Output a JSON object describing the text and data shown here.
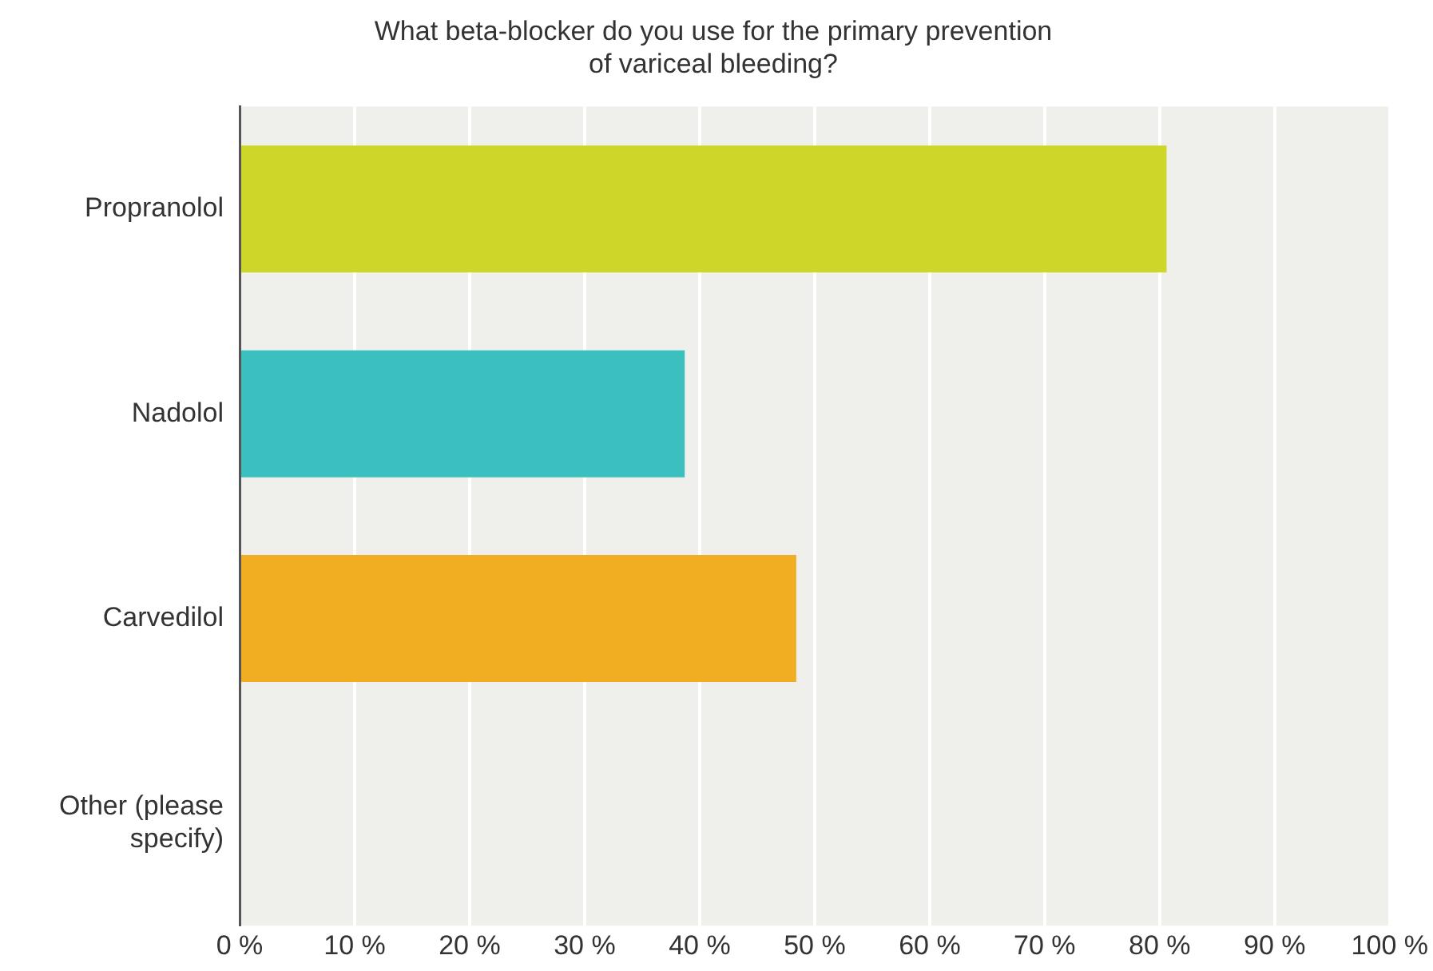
{
  "chart_data": {
    "type": "bar",
    "orientation": "horizontal",
    "title": "What beta-blocker do you use for the primary prevention of variceal bleeding?",
    "categories": [
      "Propranolol",
      "Nadolol",
      "Carvedilol",
      "Other (please specify)"
    ],
    "values": [
      80.6,
      38.7,
      48.4,
      0
    ],
    "colors": [
      "#cfd62a",
      "#3bbfbf",
      "#f2ae22",
      "#cccccc"
    ],
    "xlim": [
      0,
      100
    ],
    "xticks": [
      {
        "value": 0,
        "label": "0 %"
      },
      {
        "value": 10,
        "label": "10 %"
      },
      {
        "value": 20,
        "label": "20 %"
      },
      {
        "value": 30,
        "label": "30 %"
      },
      {
        "value": 40,
        "label": "40 %"
      },
      {
        "value": 50,
        "label": "50 %"
      },
      {
        "value": 60,
        "label": "60 %"
      },
      {
        "value": 70,
        "label": "70 %"
      },
      {
        "value": 80,
        "label": "80 %"
      },
      {
        "value": 90,
        "label": "90 %"
      },
      {
        "value": 100,
        "label": "100 %"
      }
    ],
    "grid": "x",
    "legend": false
  }
}
